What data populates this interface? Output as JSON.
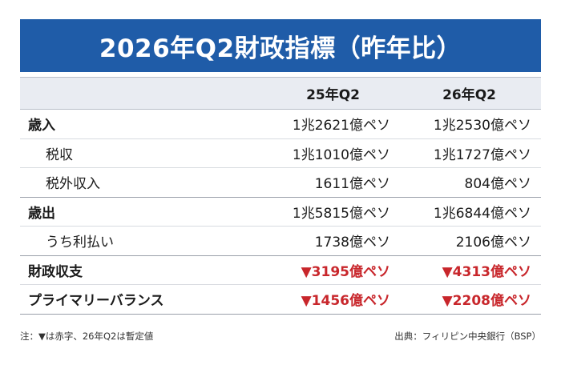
{
  "title": "2026年Q2財政指標（昨年比）",
  "table": {
    "headers": [
      "",
      "25年Q2",
      "26年Q2"
    ],
    "rows": [
      {
        "label": "歳入",
        "q2_25": "1兆2621億ペソ",
        "q2_26": "1兆2530億ペソ"
      },
      {
        "label": "税収",
        "q2_25": "1兆1010億ペソ",
        "q2_26": "1兆1727億ペソ"
      },
      {
        "label": "税外収入",
        "q2_25": "1611億ペソ",
        "q2_26": "804億ペソ"
      },
      {
        "label": "歳出",
        "q2_25": "1兆5815億ペソ",
        "q2_26": "1兆6844億ペソ"
      },
      {
        "label": "うち利払い",
        "q2_25": "1738億ペソ",
        "q2_26": "2106億ペソ"
      },
      {
        "label": "財政収支",
        "q2_25": "▼3195億ペソ",
        "q2_26": "▼4313億ペソ"
      },
      {
        "label": "プライマリーバランス",
        "q2_25": "▼1456億ペソ",
        "q2_26": "▼2208億ペソ"
      }
    ]
  },
  "footnote": "注：▼は赤字、26年Q2は暫定値",
  "source": "出典：フィリピン中央銀行（BSP）",
  "colors": {
    "title_bg": "#1f5ca8",
    "header_bg": "#e9ecf2",
    "deficit_red": "#c8262b"
  }
}
